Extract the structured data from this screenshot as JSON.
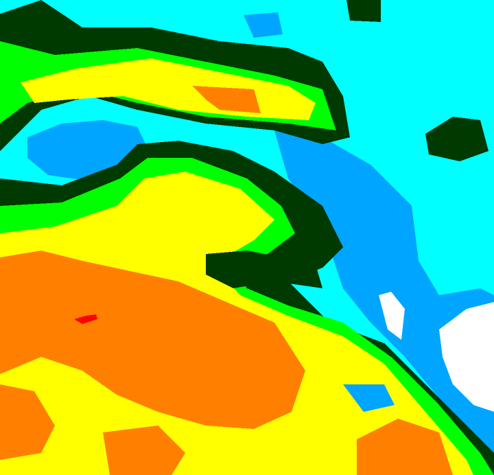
{
  "map": {
    "palette": {
      "background": "#00ffff",
      "light_blue": "#00a5ff",
      "dark_green": "#003a00",
      "green": "#00ff00",
      "yellow": "#ffff00",
      "orange": "#ff8000",
      "red": "#ff0000",
      "white": "#ffffff"
    }
  }
}
